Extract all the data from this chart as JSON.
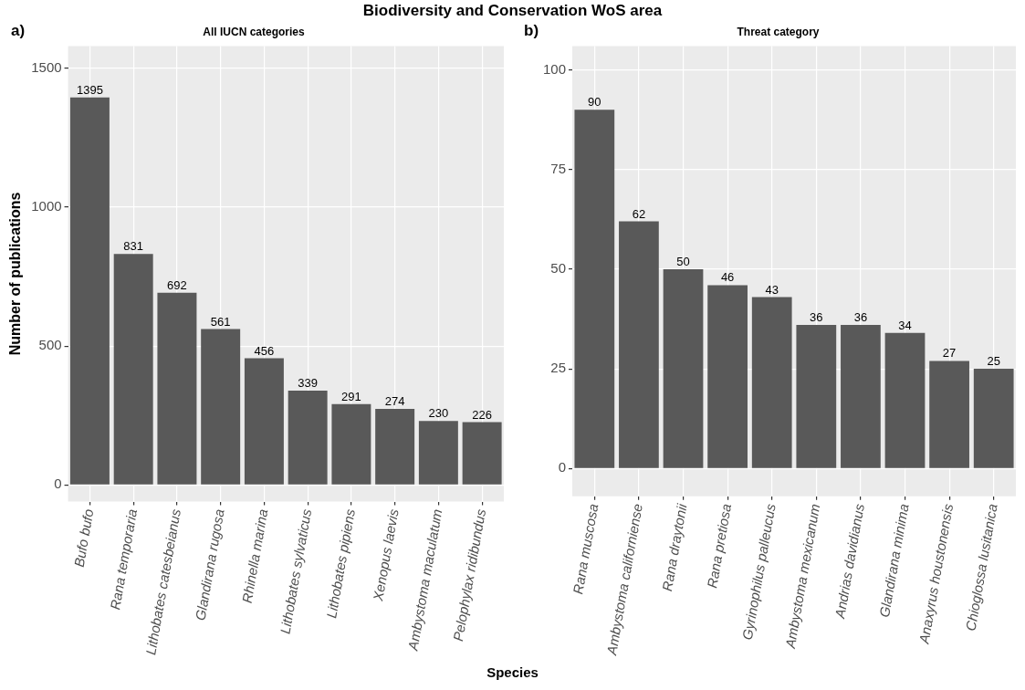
{
  "chart_data": [
    {
      "type": "bar",
      "title": "Biodiversity and Conservation WoS area",
      "subtitle": "All IUCN categories",
      "xlabel": "Species",
      "ylabel": "Number of publications",
      "annotations": [
        "a)"
      ],
      "categories": [
        "Bufo bufo",
        "Rana temporaria",
        "Lithobates catesbeianus",
        "Glandirana rugosa",
        "Rhinella marina",
        "Lithobates sylvaticus",
        "Lithobates pipiens",
        "Xenopus laevis",
        "Ambystoma maculatum",
        "Pelophylax ridibundus"
      ],
      "values": [
        1395,
        831,
        692,
        561,
        456,
        339,
        291,
        274,
        230,
        226
      ],
      "color": "#595959",
      "ylim": [
        -60,
        1580
      ],
      "yticks": [
        0,
        500,
        1000,
        1500
      ],
      "grid": true,
      "data_labels": true
    },
    {
      "type": "bar",
      "subtitle": "Threat category",
      "annotations": [
        "b)"
      ],
      "categories": [
        "Rana muscosa",
        "Ambystoma californiense",
        "Rana draytonii",
        "Rana pretiosa",
        "Gyrinophilus palleucus",
        "Ambystoma mexicanum",
        "Andrias davidianus",
        "Glandirana minima",
        "Anaxyrus houstonensis",
        "Chioglossa lusitanica"
      ],
      "values": [
        90,
        62,
        50,
        46,
        43,
        36,
        36,
        34,
        27,
        25
      ],
      "color": "#595959",
      "ylim": [
        -7,
        106
      ],
      "yticks": [
        0,
        25,
        50,
        75,
        100
      ],
      "grid": true,
      "data_labels": true
    }
  ]
}
